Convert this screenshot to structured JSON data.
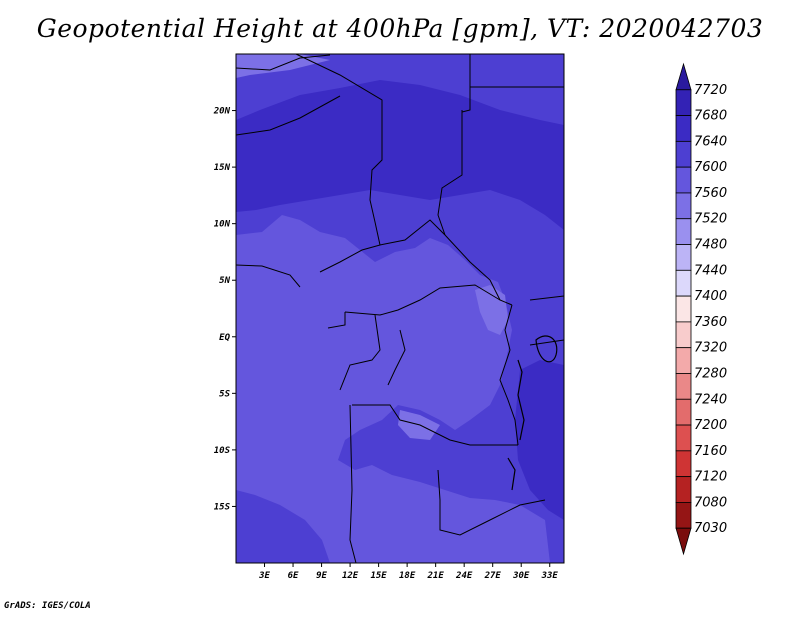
{
  "title": "Geopotential Height at 400hPa [gpm], VT: 2020042703",
  "footer": "GrADS: IGES/COLA",
  "map": {
    "lon_range": [
      0,
      34.5
    ],
    "lat_range": [
      -20,
      25
    ],
    "x_ticks": [
      {
        "value": 3,
        "label": "3E"
      },
      {
        "value": 6,
        "label": "6E"
      },
      {
        "value": 9,
        "label": "9E"
      },
      {
        "value": 12,
        "label": "12E"
      },
      {
        "value": 15,
        "label": "15E"
      },
      {
        "value": 18,
        "label": "18E"
      },
      {
        "value": 21,
        "label": "21E"
      },
      {
        "value": 24,
        "label": "24E"
      },
      {
        "value": 27,
        "label": "27E"
      },
      {
        "value": 30,
        "label": "30E"
      },
      {
        "value": 33,
        "label": "33E"
      }
    ],
    "y_ticks": [
      {
        "value": 20,
        "label": "20N"
      },
      {
        "value": 15,
        "label": "15N"
      },
      {
        "value": 10,
        "label": "10N"
      },
      {
        "value": 5,
        "label": "5N"
      },
      {
        "value": 0,
        "label": "EQ"
      },
      {
        "value": -5,
        "label": "5S"
      },
      {
        "value": -10,
        "label": "10S"
      },
      {
        "value": -15,
        "label": "15S"
      }
    ],
    "shading": {
      "7600-7640": "#4d3fd2",
      "7560-7600": "#6456dd",
      "7520-7560": "#7c70e6",
      "7640-7680": "#3b2bc4"
    }
  },
  "colorbar": {
    "levels": [
      "7720",
      "7680",
      "7640",
      "7600",
      "7560",
      "7520",
      "7480",
      "7440",
      "7400",
      "7360",
      "7320",
      "7280",
      "7240",
      "7200",
      "7160",
      "7120",
      "7080",
      "7030"
    ],
    "colors": [
      "#2a1a9e",
      "#3322b5",
      "#3b2bc4",
      "#4d3fd2",
      "#6456dd",
      "#7c70e6",
      "#9a90ef",
      "#bcb4f6",
      "#dcd8fb",
      "#fbe6e6",
      "#f8cccc",
      "#f3aaaa",
      "#ea8888",
      "#e36c6c",
      "#dd5050",
      "#cf3434",
      "#b52222",
      "#951515",
      "#7a0c0c"
    ]
  }
}
